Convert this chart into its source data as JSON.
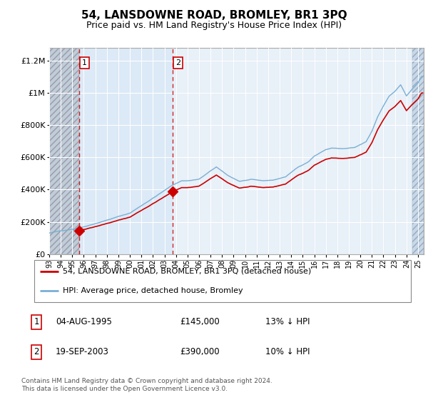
{
  "title": "54, LANSDOWNE ROAD, BROMLEY, BR1 3PQ",
  "subtitle": "Price paid vs. HM Land Registry's House Price Index (HPI)",
  "title_fontsize": 11,
  "subtitle_fontsize": 9,
  "background_color": "#ffffff",
  "plot_background": "#e8f0f8",
  "hatch_bg_color": "#c8d8e8",
  "hatch_right_bg": "#dce8f4",
  "grid_color": "#ffffff",
  "xmin": 1993.0,
  "xmax": 2025.5,
  "ymin": 0,
  "ymax": 1280000,
  "yticks": [
    0,
    200000,
    400000,
    600000,
    800000,
    1000000,
    1200000
  ],
  "ylabels": [
    "£0",
    "£200K",
    "£400K",
    "£600K",
    "£800K",
    "£1M",
    "£1.2M"
  ],
  "xticks": [
    1993,
    1994,
    1995,
    1996,
    1997,
    1998,
    1999,
    2000,
    2001,
    2002,
    2003,
    2004,
    2005,
    2006,
    2007,
    2008,
    2009,
    2010,
    2011,
    2012,
    2013,
    2014,
    2015,
    2016,
    2017,
    2018,
    2019,
    2020,
    2021,
    2022,
    2023,
    2024,
    2025
  ],
  "sale1_x": 1995.6,
  "sale1_y": 145000,
  "sale2_x": 2003.72,
  "sale2_y": 390000,
  "sale_color": "#cc0000",
  "hpi_color": "#7aafd4",
  "legend_label_red": "54, LANSDOWNE ROAD, BROMLEY, BR1 3PQ (detached house)",
  "legend_label_blue": "HPI: Average price, detached house, Bromley",
  "ann1_label": "1",
  "ann1_date": "04-AUG-1995",
  "ann1_price": "£145,000",
  "ann1_hpi": "13% ↓ HPI",
  "ann2_label": "2",
  "ann2_date": "19-SEP-2003",
  "ann2_price": "£390,000",
  "ann2_hpi": "10% ↓ HPI",
  "footer": "Contains HM Land Registry data © Crown copyright and database right 2024.\nThis data is licensed under the Open Government Licence v3.0.",
  "hatch_left_end": 1995.6,
  "hatch_right_start": 2024.5,
  "between_sales_color": "#ddeaf5"
}
